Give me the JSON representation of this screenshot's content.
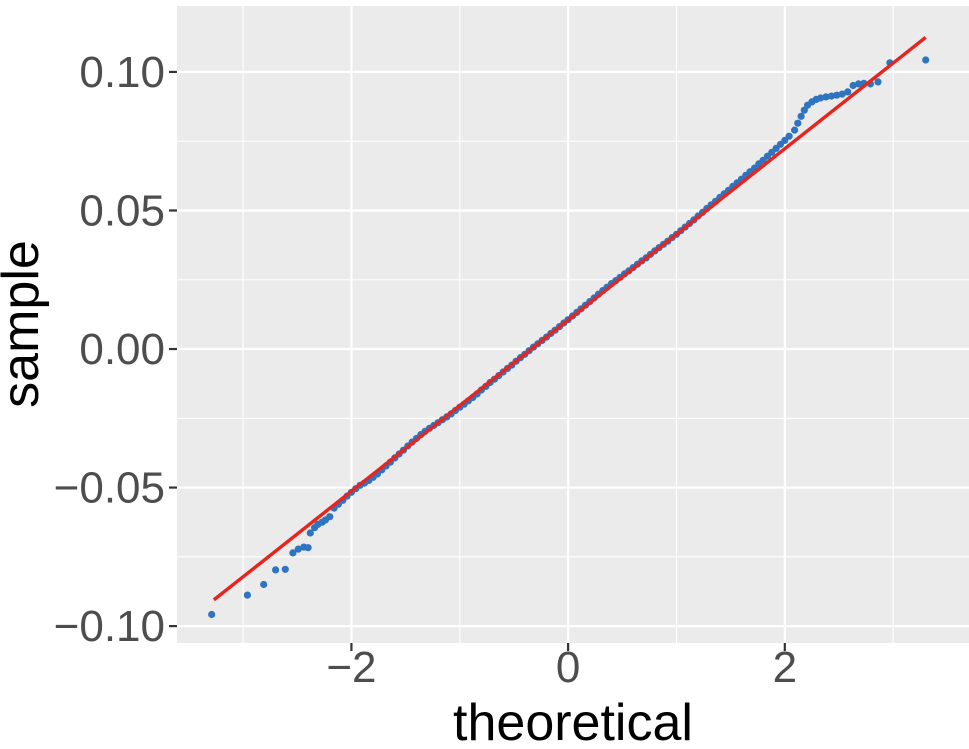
{
  "figure": {
    "background": "#FFFFFF",
    "panel_background": "#EBEBEB",
    "grid_color": "#FFFFFF",
    "tick_mark_color": "#333333",
    "tick_label_color": "#4D4D4D",
    "axis_title_color": "#000000"
  },
  "chart_data": {
    "type": "scatter",
    "subtype": "qq-plot",
    "title": "",
    "xlabel": "theoretical",
    "ylabel": "sample",
    "legend": "none",
    "grid": "on",
    "x_axis": {
      "range": [
        -3.61,
        3.7
      ],
      "major_ticks": [
        -2,
        0,
        2
      ],
      "tick_labels": [
        "−2",
        "0",
        "2"
      ],
      "minor_ticks": [
        -3,
        -1,
        1,
        3
      ]
    },
    "y_axis": {
      "range": [
        -0.1061,
        0.1238
      ],
      "major_ticks": [
        0.1,
        0.05,
        0.0,
        -0.05,
        -0.1
      ],
      "tick_labels": [
        "0.10",
        "0.05",
        "0.00",
        "−0.05",
        "−0.10"
      ],
      "minor_ticks": [
        0.075,
        0.025,
        -0.025,
        -0.075
      ]
    },
    "point_color": "#2E74C1",
    "point_radius": 3.6,
    "ref_line": {
      "color": "#E8251D",
      "slope": 0.0309,
      "intercept": 0.0105,
      "x_from": -3.27,
      "x_to": 3.3,
      "stroke_width": 3.4
    },
    "points": [
      [
        -3.29,
        -0.0958
      ],
      [
        -2.96,
        -0.0888
      ],
      [
        -2.81,
        -0.085
      ],
      [
        -2.7,
        -0.0797
      ],
      [
        -2.61,
        -0.0795
      ],
      [
        -2.54,
        -0.0736
      ],
      [
        -2.49,
        -0.0722
      ],
      [
        -2.44,
        -0.0715
      ],
      [
        -2.4,
        -0.0717
      ],
      [
        -2.38,
        -0.0664
      ],
      [
        -2.34,
        -0.0645
      ],
      [
        -2.31,
        -0.0633
      ],
      [
        -2.27,
        -0.0625
      ],
      [
        -2.24,
        -0.0617
      ],
      [
        -2.2,
        -0.0605
      ],
      [
        -2.16,
        -0.0574
      ],
      [
        -2.12,
        -0.056
      ],
      [
        -2.08,
        -0.0546
      ],
      [
        -2.04,
        -0.0531
      ],
      [
        -2.0,
        -0.0517
      ],
      [
        -1.96,
        -0.0504
      ],
      [
        -1.92,
        -0.0492
      ],
      [
        -1.88,
        -0.0484
      ],
      [
        -1.84,
        -0.0474
      ],
      [
        -1.8,
        -0.0463
      ],
      [
        -1.76,
        -0.0451
      ],
      [
        -1.72,
        -0.0436
      ],
      [
        -1.68,
        -0.0422
      ],
      [
        -1.64,
        -0.0408
      ],
      [
        -1.6,
        -0.0393
      ],
      [
        -1.56,
        -0.0379
      ],
      [
        -1.52,
        -0.0365
      ],
      [
        -1.48,
        -0.035
      ],
      [
        -1.44,
        -0.0336
      ],
      [
        -1.4,
        -0.0323
      ],
      [
        -1.36,
        -0.0309
      ],
      [
        -1.32,
        -0.0297
      ],
      [
        -1.28,
        -0.0286
      ],
      [
        -1.24,
        -0.0276
      ],
      [
        -1.2,
        -0.0266
      ],
      [
        -1.16,
        -0.0255
      ],
      [
        -1.12,
        -0.0245
      ],
      [
        -1.08,
        -0.0234
      ],
      [
        -1.04,
        -0.0222
      ],
      [
        -1.0,
        -0.021
      ],
      [
        -0.96,
        -0.0199
      ],
      [
        -0.92,
        -0.0187
      ],
      [
        -0.88,
        -0.0175
      ],
      [
        -0.84,
        -0.0162
      ],
      [
        -0.8,
        -0.0148
      ],
      [
        -0.76,
        -0.0135
      ],
      [
        -0.72,
        -0.0121
      ],
      [
        -0.68,
        -0.0109
      ],
      [
        -0.64,
        -0.0096
      ],
      [
        -0.6,
        -0.0083
      ],
      [
        -0.56,
        -0.007
      ],
      [
        -0.52,
        -0.0058
      ],
      [
        -0.48,
        -0.0044
      ],
      [
        -0.44,
        -0.0031
      ],
      [
        -0.4,
        -0.0019
      ],
      [
        -0.36,
        -0.0006
      ],
      [
        -0.32,
        0.0007
      ],
      [
        -0.28,
        0.0019
      ],
      [
        -0.24,
        0.0031
      ],
      [
        -0.2,
        0.0043
      ],
      [
        -0.16,
        0.0056
      ],
      [
        -0.12,
        0.0068
      ],
      [
        -0.08,
        0.0081
      ],
      [
        -0.04,
        0.0094
      ],
      [
        0.0,
        0.0106
      ],
      [
        0.04,
        0.0119
      ],
      [
        0.08,
        0.0132
      ],
      [
        0.12,
        0.0145
      ],
      [
        0.16,
        0.0158
      ],
      [
        0.2,
        0.0171
      ],
      [
        0.24,
        0.0184
      ],
      [
        0.28,
        0.0198
      ],
      [
        0.32,
        0.0211
      ],
      [
        0.36,
        0.0223
      ],
      [
        0.4,
        0.0236
      ],
      [
        0.44,
        0.0247
      ],
      [
        0.48,
        0.0259
      ],
      [
        0.52,
        0.0271
      ],
      [
        0.56,
        0.0282
      ],
      [
        0.6,
        0.0294
      ],
      [
        0.64,
        0.0306
      ],
      [
        0.68,
        0.0318
      ],
      [
        0.72,
        0.0329
      ],
      [
        0.76,
        0.0342
      ],
      [
        0.8,
        0.0354
      ],
      [
        0.84,
        0.0366
      ],
      [
        0.88,
        0.0378
      ],
      [
        0.92,
        0.0389
      ],
      [
        0.96,
        0.0402
      ],
      [
        1.0,
        0.0414
      ],
      [
        1.04,
        0.0427
      ],
      [
        1.08,
        0.044
      ],
      [
        1.12,
        0.0453
      ],
      [
        1.16,
        0.0466
      ],
      [
        1.2,
        0.048
      ],
      [
        1.24,
        0.0493
      ],
      [
        1.28,
        0.0507
      ],
      [
        1.32,
        0.052
      ],
      [
        1.36,
        0.0533
      ],
      [
        1.4,
        0.0547
      ],
      [
        1.44,
        0.056
      ],
      [
        1.48,
        0.0573
      ],
      [
        1.52,
        0.0587
      ],
      [
        1.56,
        0.06
      ],
      [
        1.6,
        0.0613
      ],
      [
        1.64,
        0.0627
      ],
      [
        1.68,
        0.064
      ],
      [
        1.72,
        0.0653
      ],
      [
        1.76,
        0.0668
      ],
      [
        1.8,
        0.0681
      ],
      [
        1.84,
        0.0696
      ],
      [
        1.88,
        0.071
      ],
      [
        1.92,
        0.0724
      ],
      [
        1.96,
        0.0739
      ],
      [
        2.0,
        0.0753
      ],
      [
        2.04,
        0.0768
      ],
      [
        2.09,
        0.079
      ],
      [
        2.12,
        0.0815
      ],
      [
        2.15,
        0.084
      ],
      [
        2.18,
        0.0862
      ],
      [
        2.21,
        0.088
      ],
      [
        2.25,
        0.0892
      ],
      [
        2.29,
        0.0901
      ],
      [
        2.33,
        0.0906
      ],
      [
        2.38,
        0.091
      ],
      [
        2.43,
        0.0913
      ],
      [
        2.48,
        0.0916
      ],
      [
        2.53,
        0.092
      ],
      [
        2.58,
        0.0928
      ],
      [
        2.63,
        0.0951
      ],
      [
        2.68,
        0.0957
      ],
      [
        2.73,
        0.0959
      ],
      [
        2.79,
        0.0957
      ],
      [
        2.86,
        0.0964
      ],
      [
        2.97,
        0.1033
      ],
      [
        3.3,
        0.1043
      ]
    ]
  }
}
